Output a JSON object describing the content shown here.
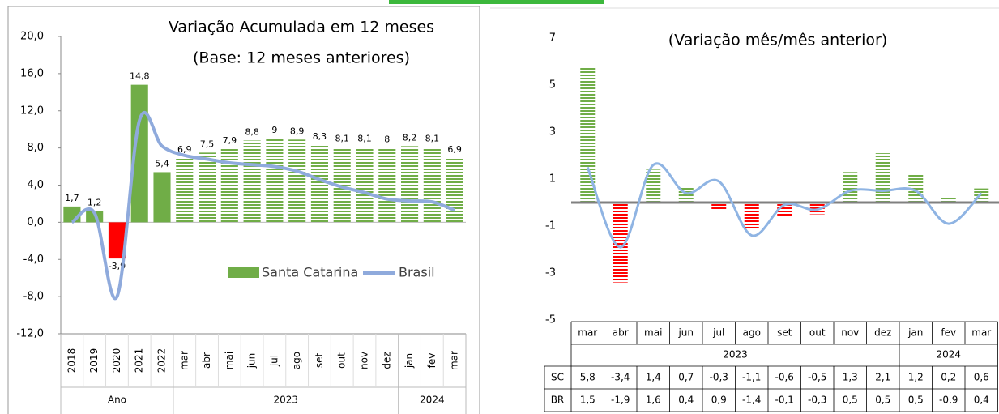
{
  "chart_data": [
    {
      "type": "bar",
      "title": "Variação Acumulada  em 12 meses",
      "subtitle": "(Base: 12 meses anteriores)",
      "categories": [
        "2018",
        "2019",
        "2020",
        "2021",
        "2022",
        "mar",
        "abr",
        "mai",
        "jun",
        "jul",
        "ago",
        "set",
        "out",
        "nov",
        "dez",
        "jan",
        "fev",
        "mar"
      ],
      "groups": [
        {
          "label": "Ano",
          "span": 5
        },
        {
          "label": "2023",
          "span": 10
        },
        {
          "label": "2024",
          "span": 3
        }
      ],
      "series": [
        {
          "name": "Santa Catarina",
          "color": "#70ad47",
          "negative_color": "#ff0000",
          "values": [
            1.7,
            1.2,
            -3.9,
            14.8,
            5.4,
            6.9,
            7.5,
            7.9,
            8.8,
            9,
            8.9,
            8.3,
            8.1,
            8.1,
            8,
            8.2,
            8.1,
            6.9
          ],
          "value_labels": [
            "1,7",
            "1,2",
            "-3,9",
            "14,8",
            "5,4",
            "6,9",
            "7,5",
            "7,9",
            "8,8",
            "9",
            "8,9",
            "8,3",
            "8,1",
            "8,1",
            "8",
            "8,2",
            "8,1",
            "6,9"
          ]
        },
        {
          "name": "Brasil",
          "type": "line",
          "color": "#8faadc",
          "values": [
            0,
            1,
            -8,
            11,
            8.2,
            7.2,
            6.8,
            6.4,
            6.2,
            6,
            5.5,
            4.6,
            3.8,
            3.2,
            2.5,
            2.3,
            2.2,
            1.3
          ]
        }
      ],
      "ylim": [
        -12,
        20
      ],
      "yticks": [
        {
          "value": -12,
          "label": "-12,0"
        },
        {
          "value": -8,
          "label": "-8,0"
        },
        {
          "value": -4,
          "label": "-4,0"
        },
        {
          "value": 0,
          "label": "0,0"
        },
        {
          "value": 4,
          "label": "4,0"
        },
        {
          "value": 8,
          "label": "8,0"
        },
        {
          "value": 12,
          "label": "12,0"
        },
        {
          "value": 16,
          "label": "16,0"
        },
        {
          "value": 20,
          "label": "20,0"
        }
      ],
      "legend": "bottom-right"
    },
    {
      "type": "bar",
      "title": "(Variação mês/mês anterior)",
      "categories": [
        "mar",
        "abr",
        "mai",
        "jun",
        "jul",
        "ago",
        "set",
        "out",
        "nov",
        "dez",
        "jan",
        "fev",
        "mar"
      ],
      "groups": [
        {
          "label": "2023",
          "span": 10
        },
        {
          "label": "2024",
          "span": 3
        }
      ],
      "series": [
        {
          "name": "SC",
          "color": "#70ad47",
          "negative_color": "#ff0000",
          "values": [
            5.8,
            -3.4,
            1.4,
            0.7,
            -0.3,
            -1.1,
            -0.6,
            -0.5,
            1.3,
            2.1,
            1.2,
            0.2,
            0.6
          ],
          "value_labels": [
            "5,8",
            "-3,4",
            "1,4",
            "0,7",
            "-0,3",
            "-1,1",
            "-0,6",
            "-0,5",
            "1,3",
            "2,1",
            "1,2",
            "0,2",
            "0,6"
          ]
        },
        {
          "name": "BR",
          "type": "line",
          "color": "#8fb4e3",
          "values": [
            1.5,
            -1.9,
            1.6,
            0.4,
            0.9,
            -1.4,
            -0.1,
            -0.3,
            0.5,
            0.5,
            0.5,
            -0.9,
            0.4
          ],
          "value_labels": [
            "1,5",
            "-1,9",
            "1,6",
            "0,4",
            "0,9",
            "-1,4",
            "-0,1",
            "-0,3",
            "0,5",
            "0,5",
            "0,5",
            "-0,9",
            "0,4"
          ]
        }
      ],
      "ylim": [
        -5,
        7
      ],
      "yticks": [
        -5,
        -3,
        -1,
        1,
        3,
        5,
        7
      ]
    }
  ]
}
